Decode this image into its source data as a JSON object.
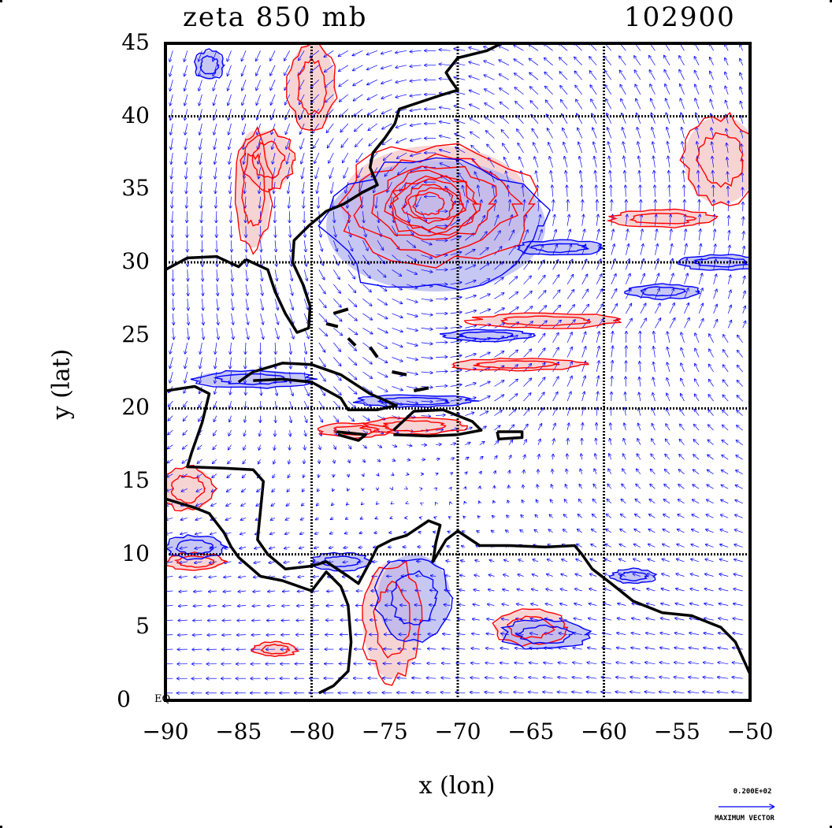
{
  "title": {
    "field": "zeta 850 mb",
    "time": "102900"
  },
  "axes": {
    "xlabel": "x (lon)",
    "ylabel": "y (lat)",
    "xlim": [
      -90,
      -50
    ],
    "ylim": [
      0,
      45
    ],
    "xticks": [
      "−90",
      "−85",
      "−80",
      "−75",
      "−70",
      "−65",
      "−60",
      "−55",
      "−50"
    ],
    "yticks": [
      "45",
      "40",
      "35",
      "30",
      "25",
      "20",
      "15",
      "10",
      "5",
      "0"
    ],
    "equator_label": "EQ",
    "grid_lines_lon": [
      -80,
      -70,
      -60
    ],
    "grid_lines_lat": [
      10,
      20,
      30,
      40
    ]
  },
  "legend": {
    "max_vector_value": "0.200E+02",
    "max_vector_label": "MAXIMUM VECTOR"
  },
  "colors": {
    "positive_contour": "#ff0000",
    "positive_fill": "#f4c6c6",
    "negative_contour": "#0000ff",
    "negative_fill": "#b4b4f0",
    "vectors": "#0000ff",
    "coastline": "#000000"
  },
  "features": {
    "cyclone_center_lon": -71.5,
    "cyclone_center_lat": 34
  }
}
